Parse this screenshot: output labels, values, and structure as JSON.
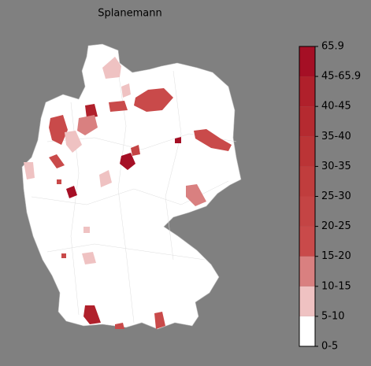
{
  "title": "Splanemann",
  "colorbar": {
    "labels": [
      "0-5",
      "5-10",
      "10-15",
      "15-20",
      "20-25",
      "25-30",
      "30-35",
      "35-40",
      "40-45",
      "45-65.9",
      "65.9"
    ],
    "colors": [
      "#ffffff",
      "#efc2c2",
      "#d98080",
      "#c94a4a",
      "#c44444",
      "#c03d3d",
      "#bb3436",
      "#b52a30",
      "#b0202b",
      "#a50f25"
    ]
  }
}
